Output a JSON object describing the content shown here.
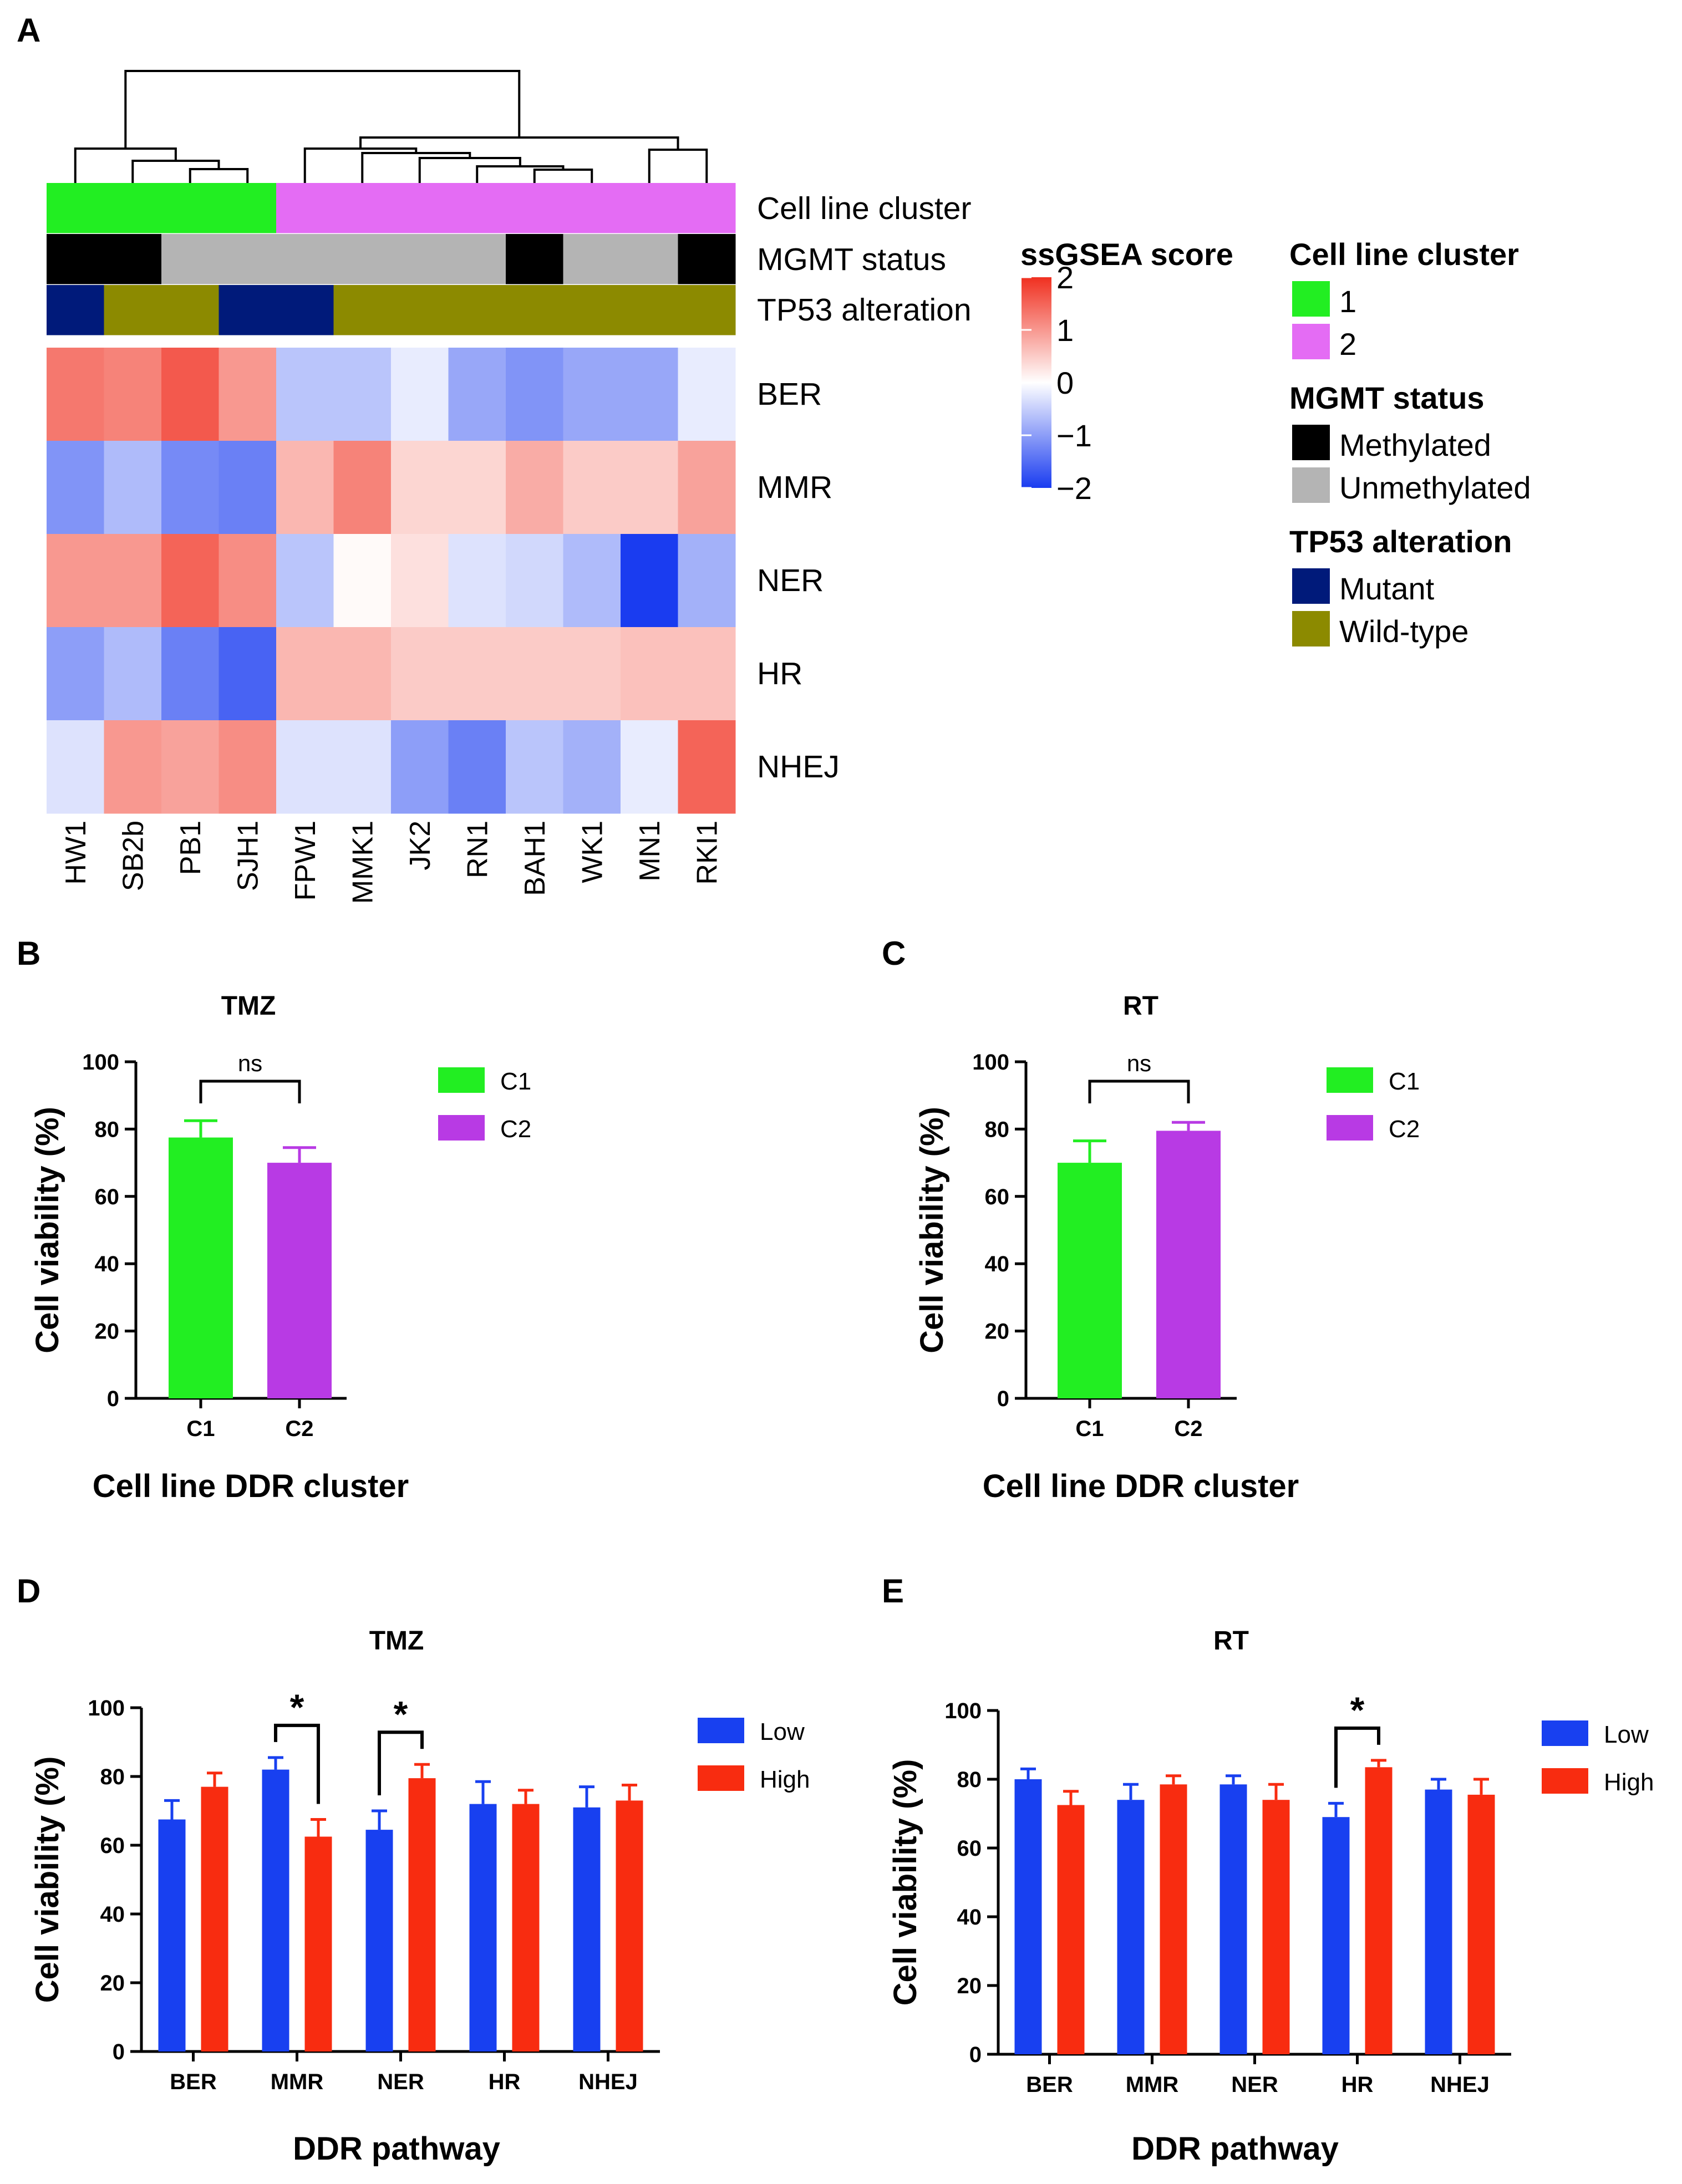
{
  "panels": {
    "a": "A",
    "b": "B",
    "c": "C",
    "d": "D",
    "e": "E"
  },
  "heatmap": {
    "samples": [
      "HW1",
      "SB2b",
      "PB1",
      "SJH1",
      "FPW1",
      "MMK1",
      "JK2",
      "RN1",
      "BAH1",
      "WK1",
      "MN1",
      "RKI1"
    ],
    "rows": [
      "BER",
      "MMR",
      "NER",
      "HR",
      "NHEJ"
    ],
    "annotation_rows": [
      "Cell line cluster",
      "MGMT status",
      "TP53 alteration"
    ],
    "cluster": [
      1,
      1,
      1,
      1,
      2,
      2,
      2,
      2,
      2,
      2,
      2,
      2
    ],
    "mgmt": [
      "Methylated",
      "Methylated",
      "Unmethylated",
      "Unmethylated",
      "Unmethylated",
      "Unmethylated",
      "Unmethylated",
      "Unmethylated",
      "Methylated",
      "Unmethylated",
      "Unmethylated",
      "Methylated"
    ],
    "tp53": [
      "Mutant",
      "Wild-type",
      "Wild-type",
      "Mutant",
      "Mutant",
      "Wild-type",
      "Wild-type",
      "Wild-type",
      "Wild-type",
      "Wild-type",
      "Wild-type",
      "Wild-type"
    ],
    "scores": [
      [
        1.3,
        1.2,
        1.6,
        1.0,
        -0.6,
        -0.6,
        -0.2,
        -0.9,
        -1.1,
        -0.9,
        -0.9,
        -0.2
      ],
      [
        -1.1,
        -0.7,
        -1.2,
        -1.3,
        0.7,
        1.2,
        0.4,
        0.4,
        0.8,
        0.5,
        0.5,
        0.9
      ],
      [
        1.0,
        1.0,
        1.5,
        1.1,
        -0.6,
        0.05,
        0.3,
        -0.3,
        -0.4,
        -0.7,
        -2.0,
        -0.8
      ],
      [
        -1.0,
        -0.7,
        -1.3,
        -1.6,
        0.7,
        0.7,
        0.5,
        0.5,
        0.5,
        0.5,
        0.6,
        0.6
      ],
      [
        -0.3,
        1.0,
        0.9,
        1.1,
        -0.3,
        -0.3,
        -1.0,
        -1.3,
        -0.6,
        -0.8,
        -0.2,
        1.5
      ]
    ],
    "colors": {
      "cluster1": "#22ee22",
      "cluster2": "#e46cf4",
      "methylated": "#000000",
      "unmethylated": "#b4b4b4",
      "mutant": "#001a7a",
      "wildtype": "#8c8a00",
      "score_low": "#1a3cf0",
      "score_mid": "#ffffff",
      "score_high": "#f03020"
    },
    "colorbar": {
      "title": "ssGSEA score",
      "ticks": [
        "2",
        "1",
        "0",
        "−1",
        "−2"
      ],
      "values": [
        2,
        1,
        0,
        -1,
        -2
      ]
    },
    "legend": {
      "cluster_title": "Cell line cluster",
      "cluster_items": [
        "1",
        "2"
      ],
      "mgmt_title": "MGMT status",
      "mgmt_items": [
        "Methylated",
        "Unmethylated"
      ],
      "tp53_title": "TP53 alteration",
      "tp53_items": [
        "Mutant",
        "Wild-type"
      ]
    }
  },
  "chart_data": [
    {
      "panel": "B",
      "type": "bar",
      "title": "TMZ",
      "categories": [
        "C1",
        "C2"
      ],
      "values": [
        77.5,
        70.0
      ],
      "errors": [
        5.0,
        4.5
      ],
      "colors": [
        "#22ee22",
        "#b83ae4"
      ],
      "legend": [
        "C1",
        "C2"
      ],
      "xlabel": "Cell line DDR cluster",
      "ylabel": "Cell viability (%)",
      "ylim": [
        0,
        100
      ],
      "yticks": [
        "0",
        "20",
        "40",
        "60",
        "80",
        "100"
      ],
      "annotation": "ns"
    },
    {
      "panel": "C",
      "type": "bar",
      "title": "RT",
      "categories": [
        "C1",
        "C2"
      ],
      "values": [
        70.0,
        79.5
      ],
      "errors": [
        6.5,
        2.5
      ],
      "colors": [
        "#22ee22",
        "#b83ae4"
      ],
      "legend": [
        "C1",
        "C2"
      ],
      "xlabel": "Cell line DDR cluster",
      "ylabel": "Cell viability (%)",
      "ylim": [
        0,
        100
      ],
      "yticks": [
        "0",
        "20",
        "40",
        "60",
        "80",
        "100"
      ],
      "annotation": "ns"
    },
    {
      "panel": "D",
      "type": "bar",
      "title": "TMZ",
      "categories": [
        "BER",
        "MMR",
        "NER",
        "HR",
        "NHEJ"
      ],
      "series": [
        {
          "name": "Low",
          "color": "#1840f0",
          "values": [
            67.5,
            82.0,
            64.5,
            72.0,
            71.0
          ],
          "errors": [
            5.5,
            3.5,
            5.5,
            6.5,
            6.0
          ]
        },
        {
          "name": "High",
          "color": "#f82c10",
          "values": [
            77.0,
            62.5,
            79.5,
            72.0,
            73.0
          ],
          "errors": [
            4.0,
            5.0,
            4.0,
            4.0,
            4.5
          ]
        }
      ],
      "xlabel": "DDR pathway",
      "ylabel": "Cell viability (%)",
      "ylim": [
        0,
        100
      ],
      "yticks": [
        "0",
        "20",
        "40",
        "60",
        "80",
        "100"
      ],
      "significance": [
        "MMR",
        "NER"
      ],
      "sig_label": "*"
    },
    {
      "panel": "E",
      "type": "bar",
      "title": "RT",
      "categories": [
        "BER",
        "MMR",
        "NER",
        "HR",
        "NHEJ"
      ],
      "series": [
        {
          "name": "Low",
          "color": "#1840f0",
          "values": [
            80.0,
            74.0,
            78.5,
            69.0,
            77.0
          ],
          "errors": [
            3.0,
            4.5,
            2.5,
            4.0,
            3.0
          ]
        },
        {
          "name": "High",
          "color": "#f82c10",
          "values": [
            72.5,
            78.5,
            74.0,
            83.5,
            75.5
          ],
          "errors": [
            4.0,
            2.5,
            4.5,
            2.0,
            4.5
          ]
        }
      ],
      "xlabel": "DDR pathway",
      "ylabel": "Cell viability (%)",
      "ylim": [
        0,
        100
      ],
      "yticks": [
        "0",
        "20",
        "40",
        "60",
        "80",
        "100"
      ],
      "significance": [
        "HR"
      ],
      "sig_label": "*"
    }
  ]
}
